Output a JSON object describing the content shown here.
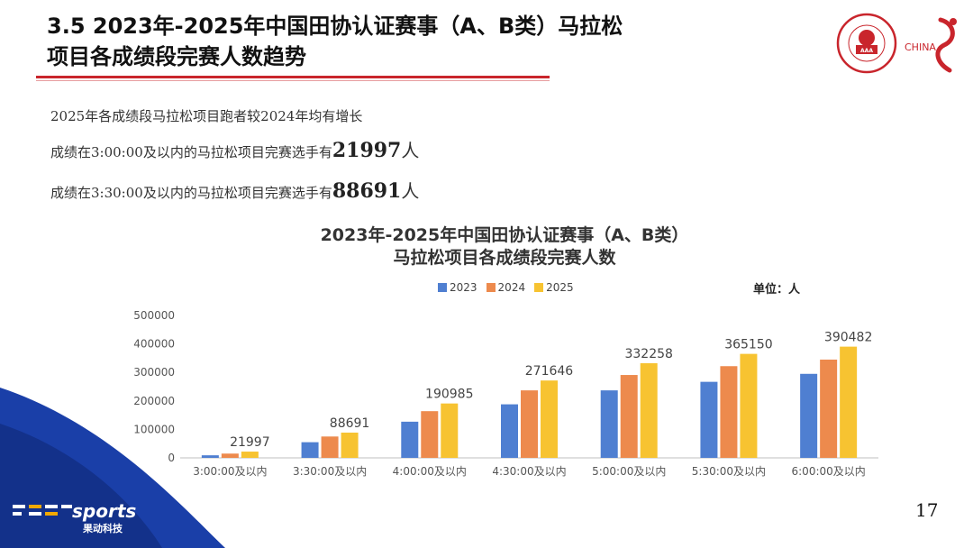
{
  "header": {
    "title_line1": "3.5 2023年-2025年中国田协认证赛事（A、B类）马拉松",
    "title_line2": "项目各成绩段完赛人数趋势"
  },
  "logos": {
    "caa_text": "CHINESE ATHLETICS ASSOCIATION",
    "caa_cn": "中国田径协会",
    "china_text": "CHINA"
  },
  "notes": {
    "line1": "2025年各成绩段马拉松项目跑者较2024年均有增长",
    "line2_prefix": "成绩在3:00:00及以内的马拉松项目完赛选手有",
    "line2_num": "21997",
    "line2_unit": "人",
    "line3_prefix": "成绩在3:30:00及以内的马拉松项目完赛选手有",
    "line3_num": "88691",
    "line3_unit": "人"
  },
  "unit_label": "单位：人",
  "chart_data": {
    "type": "bar",
    "title": "2023年-2025年中国田协认证赛事（A、B类）",
    "subtitle": "马拉松项目各成绩段完赛人数",
    "categories": [
      "3:00:00及以内",
      "3:30:00及以内",
      "4:00:00及以内",
      "4:30:00及以内",
      "5:00:00及以内",
      "5:30:00及以内",
      "6:00:00及以内"
    ],
    "series": [
      {
        "name": "2023",
        "color": "#4f7fd1",
        "values": [
          9000,
          55000,
          127000,
          188000,
          237000,
          267000,
          295000
        ]
      },
      {
        "name": "2024",
        "color": "#ed8a4d",
        "values": [
          15000,
          75000,
          164000,
          237000,
          291000,
          322000,
          345000
        ]
      },
      {
        "name": "2025",
        "color": "#f7c331",
        "values": [
          21997,
          88691,
          190985,
          271646,
          332258,
          365150,
          390482
        ]
      }
    ],
    "data_labels_series": "2025",
    "ylim": [
      0,
      500000
    ],
    "yticks": [
      "0",
      "100000",
      "200000",
      "300000",
      "400000",
      "500000"
    ],
    "grid": false,
    "legend": "top"
  },
  "footer": {
    "brand": "sports",
    "brand_sub": "果动科技",
    "page_number": "17"
  }
}
